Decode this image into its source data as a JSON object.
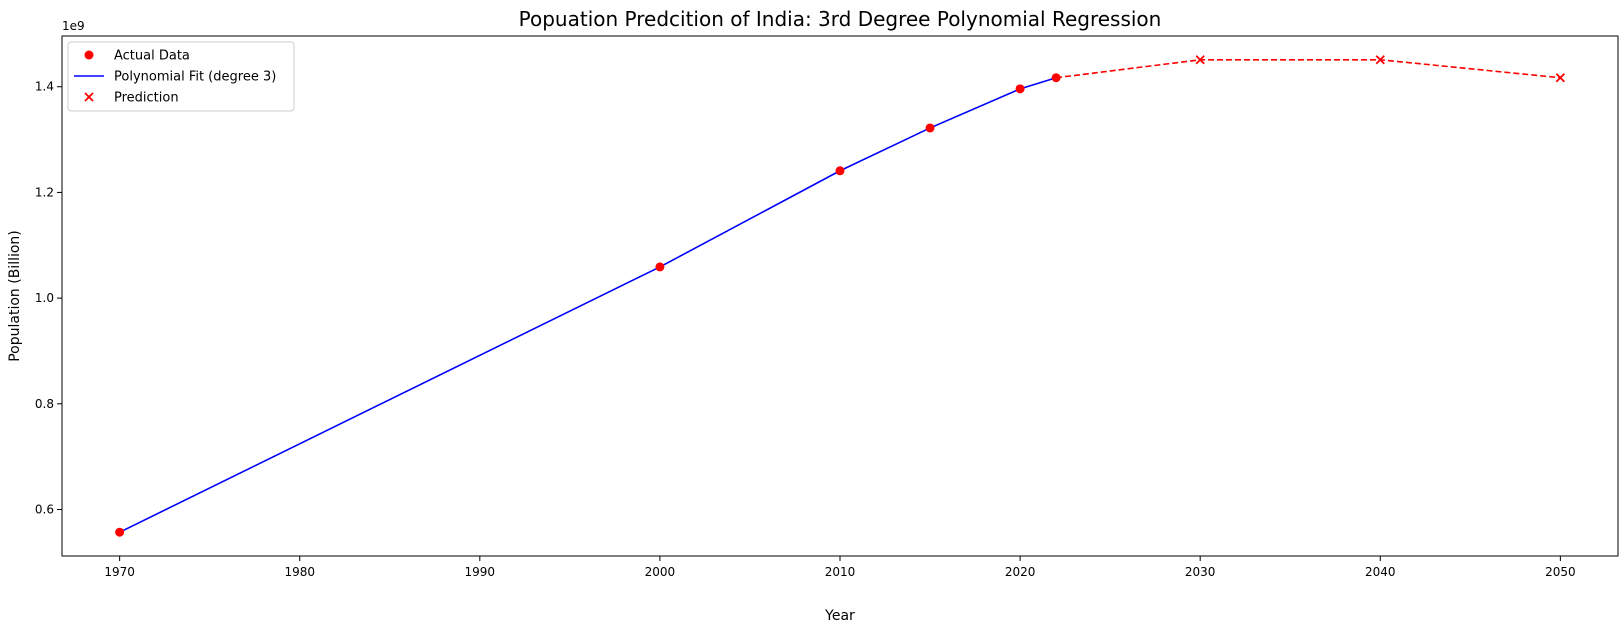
{
  "chart_data": {
    "type": "line",
    "title": "Popuation Predcition of India: 3rd Degree Polynomial Regression",
    "xlabel": "Year",
    "ylabel": "Population (Billion)",
    "y_offset_text": "1e9",
    "xlim": [
      1966.8,
      2053.2
    ],
    "ylim": [
      0.512,
      1.496
    ],
    "x_ticks": [
      1970,
      1980,
      1990,
      2000,
      2010,
      2020,
      2030,
      2040,
      2050
    ],
    "y_ticks": [
      0.6,
      0.8,
      1.0,
      1.2,
      1.4
    ],
    "legend_position": "top-left",
    "grid": false,
    "series": [
      {
        "name": "Actual Data",
        "kind": "scatter",
        "marker": "circle",
        "color": "#ff0000",
        "points": [
          {
            "x": 1970,
            "y": 0.557
          },
          {
            "x": 2000,
            "y": 1.059
          },
          {
            "x": 2010,
            "y": 1.241
          },
          {
            "x": 2015,
            "y": 1.322
          },
          {
            "x": 2020,
            "y": 1.396
          },
          {
            "x": 2022,
            "y": 1.417
          }
        ]
      },
      {
        "name": "Polynomial Fit (degree 3)",
        "kind": "line",
        "style": "solid",
        "color": "#0000ff",
        "points": [
          {
            "x": 1970,
            "y": 0.557
          },
          {
            "x": 2000,
            "y": 1.059
          },
          {
            "x": 2010,
            "y": 1.241
          },
          {
            "x": 2015,
            "y": 1.322
          },
          {
            "x": 2020,
            "y": 1.396
          },
          {
            "x": 2022,
            "y": 1.417
          }
        ]
      },
      {
        "name": "Prediction",
        "kind": "scatter",
        "marker": "x",
        "color": "#ff0000",
        "points": [
          {
            "x": 2030,
            "y": 1.451
          },
          {
            "x": 2040,
            "y": 1.451
          },
          {
            "x": 2050,
            "y": 1.417
          }
        ]
      },
      {
        "kind": "line",
        "style": "dashed",
        "color": "#ff0000",
        "points": [
          {
            "x": 2022,
            "y": 1.417
          },
          {
            "x": 2030,
            "y": 1.451
          },
          {
            "x": 2040,
            "y": 1.451
          },
          {
            "x": 2050,
            "y": 1.417
          }
        ]
      }
    ]
  }
}
